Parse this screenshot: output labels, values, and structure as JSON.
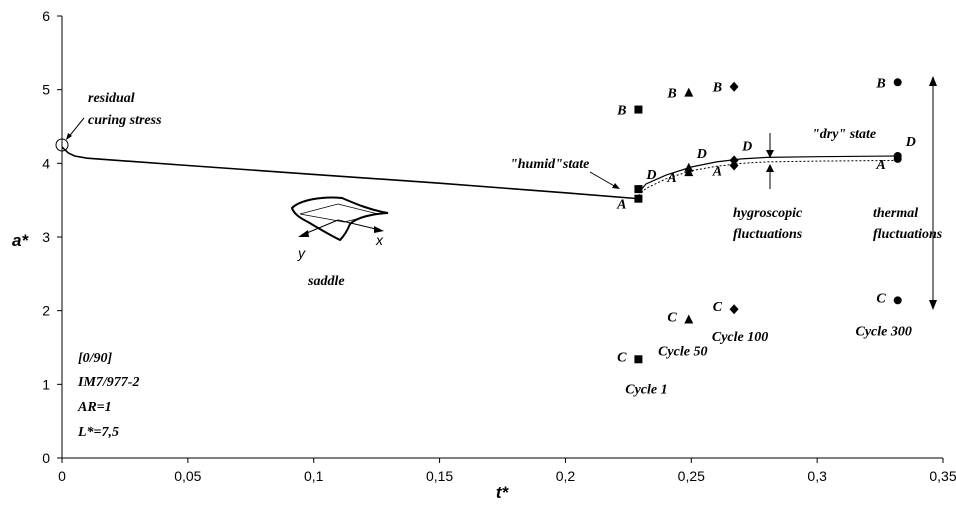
{
  "chart_data": {
    "type": "scatter",
    "xlabel": "t*",
    "ylabel": "a*",
    "xlim": [
      0,
      0.35
    ],
    "ylim": [
      0,
      6
    ],
    "xticks": [
      "0",
      "0,05",
      "0,1",
      "0,15",
      "0,2",
      "0,25",
      "0,3",
      "0,35"
    ],
    "yticks": [
      "0",
      "1",
      "2",
      "3",
      "4",
      "5",
      "6"
    ],
    "grid": false,
    "humid_line": {
      "x": [
        0,
        0.0025,
        0.005,
        0.01,
        0.05,
        0.1,
        0.15,
        0.2,
        0.229
      ],
      "y": [
        4.22,
        4.14,
        4.1,
        4.07,
        3.97,
        3.85,
        3.73,
        3.6,
        3.52
      ]
    },
    "dry_line": {
      "x": [
        0.229,
        0.232,
        0.24,
        0.25,
        0.26,
        0.27,
        0.28,
        0.3,
        0.332
      ],
      "y": [
        3.6,
        3.72,
        3.84,
        3.95,
        4.02,
        4.06,
        4.08,
        4.09,
        4.1
      ]
    },
    "dry_line_dashed": {
      "x": [
        0.229,
        0.232,
        0.24,
        0.25,
        0.26,
        0.27,
        0.28,
        0.3,
        0.332
      ],
      "y": [
        3.56,
        3.66,
        3.79,
        3.9,
        3.96,
        4.0,
        4.02,
        4.03,
        4.04
      ]
    },
    "series": [
      {
        "name": "Cycle 1",
        "marker": "square",
        "x": 0.229,
        "points": [
          {
            "label": "A",
            "y": 3.52
          },
          {
            "label": "B",
            "y": 4.73
          },
          {
            "label": "C",
            "y": 1.34
          },
          {
            "label": "D",
            "y": 3.65
          }
        ]
      },
      {
        "name": "Cycle 50",
        "marker": "triangle",
        "x": 0.249,
        "points": [
          {
            "label": "A",
            "y": 3.88
          },
          {
            "label": "B",
            "y": 4.96
          },
          {
            "label": "C",
            "y": 1.88
          },
          {
            "label": "D",
            "y": 3.94
          }
        ]
      },
      {
        "name": "Cycle 100",
        "marker": "diamond",
        "x": 0.267,
        "points": [
          {
            "label": "A",
            "y": 3.97
          },
          {
            "label": "B",
            "y": 5.04
          },
          {
            "label": "C",
            "y": 2.02
          },
          {
            "label": "D",
            "y": 4.04
          }
        ]
      },
      {
        "name": "Cycle 300",
        "marker": "circle",
        "x": 0.332,
        "points": [
          {
            "label": "A",
            "y": 4.06
          },
          {
            "label": "B",
            "y": 5.1
          },
          {
            "label": "C",
            "y": 2.14
          },
          {
            "label": "D",
            "y": 4.1
          }
        ]
      }
    ],
    "annotations": {
      "residual": [
        "residual",
        "curing stress"
      ],
      "humid": "\"humid\"state",
      "dry": "\"dry\" state",
      "hygroscopic": [
        "hygroscopic",
        "fluctuations"
      ],
      "thermal": [
        "thermal",
        "fluctuations"
      ],
      "saddle": "saddle",
      "axis_x": "x",
      "axis_y": "y",
      "specimen": [
        "[0/90]",
        "IM7/977-2",
        "AR=1",
        "L*=7,5"
      ]
    }
  }
}
